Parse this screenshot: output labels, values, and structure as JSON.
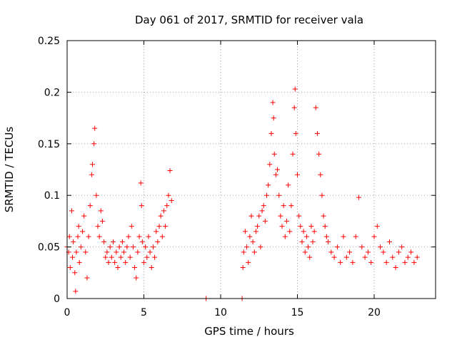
{
  "chart_data": {
    "type": "scatter",
    "title": "Day 061 of 2017, SRMTID for receiver vala",
    "xlabel": "GPS time / hours",
    "ylabel": "SRMTID / TECUs",
    "xlim": [
      0,
      24
    ],
    "ylim": [
      0,
      0.25
    ],
    "xticks": [
      0,
      5,
      10,
      15,
      20
    ],
    "xtick_labels": [
      "0",
      "5",
      "10",
      "15",
      "20"
    ],
    "yticks": [
      0,
      0.05,
      0.1,
      0.15,
      0.2,
      0.25
    ],
    "ytick_labels": [
      "0",
      "0.05",
      "0.1",
      "0.15",
      "0.2",
      "0.25"
    ],
    "grid": true,
    "marker": "+",
    "color": "#ff0000",
    "series": [
      {
        "name": "SRMTID",
        "x": [
          0.0,
          0.1,
          0.15,
          0.2,
          0.3,
          0.35,
          0.4,
          0.5,
          0.55,
          0.6,
          0.7,
          0.75,
          0.8,
          0.9,
          1.0,
          1.1,
          1.2,
          1.3,
          1.4,
          1.5,
          1.6,
          1.65,
          1.75,
          1.8,
          1.9,
          2.0,
          2.1,
          2.2,
          2.3,
          2.4,
          2.5,
          2.6,
          2.7,
          2.8,
          2.9,
          3.0,
          3.1,
          3.2,
          3.3,
          3.4,
          3.5,
          3.6,
          3.7,
          3.8,
          3.9,
          4.0,
          4.1,
          4.2,
          4.3,
          4.4,
          4.5,
          4.6,
          4.7,
          4.8,
          4.85,
          4.9,
          5.0,
          5.1,
          5.2,
          5.3,
          5.4,
          5.5,
          5.6,
          5.7,
          5.8,
          5.9,
          6.0,
          6.1,
          6.2,
          6.3,
          6.4,
          6.5,
          6.6,
          6.7,
          6.8,
          9.05,
          11.4,
          11.45,
          11.5,
          11.6,
          11.7,
          11.8,
          11.9,
          12.0,
          12.1,
          12.2,
          12.3,
          12.4,
          12.5,
          12.6,
          12.7,
          12.8,
          12.9,
          13.0,
          13.1,
          13.2,
          13.3,
          13.4,
          13.45,
          13.5,
          13.6,
          13.7,
          13.8,
          13.9,
          14.0,
          14.1,
          14.2,
          14.3,
          14.4,
          14.5,
          14.6,
          14.7,
          14.8,
          14.85,
          14.9,
          15.0,
          15.1,
          15.2,
          15.3,
          15.4,
          15.5,
          15.6,
          15.7,
          15.8,
          15.9,
          16.0,
          16.1,
          16.2,
          16.3,
          16.4,
          16.5,
          16.6,
          16.7,
          16.8,
          16.9,
          17.0,
          17.2,
          17.4,
          17.6,
          17.8,
          18.0,
          18.2,
          18.4,
          18.6,
          18.8,
          19.0,
          19.2,
          19.4,
          19.6,
          19.8,
          20.0,
          20.2,
          20.4,
          20.6,
          20.8,
          21.0,
          21.2,
          21.4,
          21.6,
          21.8,
          22.0,
          22.2,
          22.4,
          22.6,
          22.8
        ],
        "y": [
          0.05,
          0.045,
          0.06,
          0.03,
          0.085,
          0.04,
          0.055,
          0.025,
          0.007,
          0.045,
          0.06,
          0.07,
          0.035,
          0.05,
          0.065,
          0.08,
          0.045,
          0.02,
          0.06,
          0.09,
          0.12,
          0.13,
          0.15,
          0.165,
          0.1,
          0.07,
          0.06,
          0.085,
          0.075,
          0.055,
          0.04,
          0.045,
          0.035,
          0.05,
          0.04,
          0.055,
          0.035,
          0.045,
          0.03,
          0.05,
          0.04,
          0.055,
          0.045,
          0.035,
          0.05,
          0.06,
          0.04,
          0.07,
          0.05,
          0.03,
          0.02,
          0.045,
          0.06,
          0.112,
          0.09,
          0.055,
          0.035,
          0.05,
          0.04,
          0.06,
          0.045,
          0.03,
          0.05,
          0.04,
          0.065,
          0.055,
          0.07,
          0.08,
          0.06,
          0.085,
          0.07,
          0.09,
          0.1,
          0.124,
          0.095,
          0.0,
          0.0,
          0.03,
          0.045,
          0.065,
          0.05,
          0.035,
          0.06,
          0.08,
          0.055,
          0.045,
          0.065,
          0.07,
          0.08,
          0.05,
          0.085,
          0.09,
          0.075,
          0.1,
          0.11,
          0.13,
          0.16,
          0.19,
          0.175,
          0.14,
          0.12,
          0.125,
          0.1,
          0.08,
          0.07,
          0.09,
          0.06,
          0.075,
          0.11,
          0.065,
          0.09,
          0.14,
          0.185,
          0.203,
          0.16,
          0.12,
          0.08,
          0.07,
          0.055,
          0.065,
          0.045,
          0.06,
          0.05,
          0.04,
          0.07,
          0.055,
          0.065,
          0.185,
          0.16,
          0.14,
          0.12,
          0.1,
          0.08,
          0.07,
          0.06,
          0.055,
          0.045,
          0.04,
          0.05,
          0.035,
          0.06,
          0.04,
          0.045,
          0.035,
          0.06,
          0.098,
          0.05,
          0.04,
          0.045,
          0.035,
          0.06,
          0.07,
          0.05,
          0.045,
          0.035,
          0.055,
          0.04,
          0.03,
          0.045,
          0.05,
          0.035,
          0.04,
          0.045,
          0.035,
          0.04
        ]
      }
    ]
  }
}
